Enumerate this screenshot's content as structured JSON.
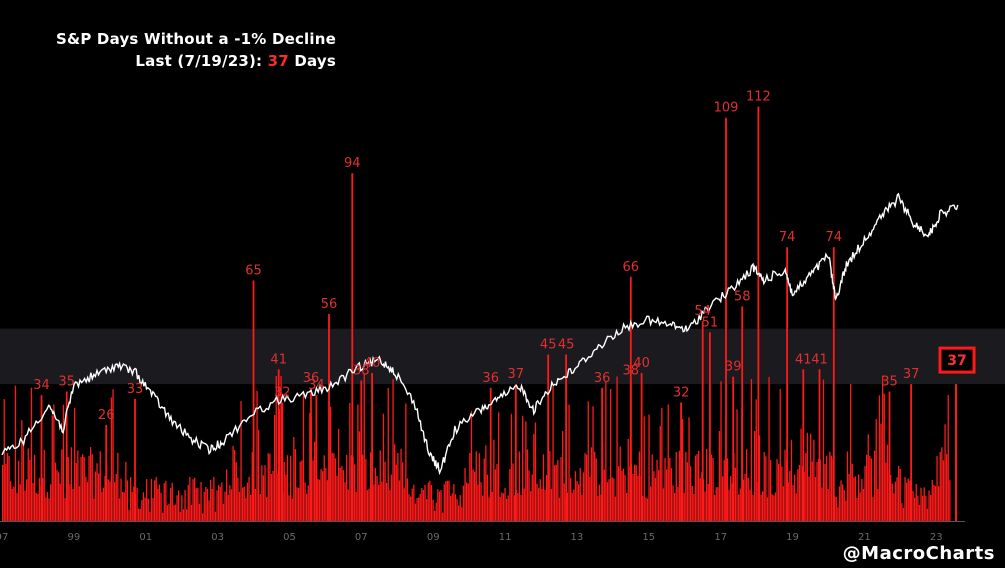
{
  "title": "S&P Days Without a -1% Decline",
  "subtitle_prefix": "Last (7/19/23): ",
  "subtitle_value": "37",
  "subtitle_suffix": " Days",
  "watermark": "@MacroCharts",
  "chart_data": {
    "type": "bar",
    "x_ticks": [
      "97",
      "99",
      "01",
      "03",
      "05",
      "07",
      "09",
      "11",
      "13",
      "15",
      "17",
      "19",
      "21",
      "23"
    ],
    "xlim": [
      1997,
      2023.8
    ],
    "ylim_bars": [
      0,
      130
    ],
    "bar_color": "#ff1a1a",
    "line_color": "#ffffff",
    "band_range": [
      37,
      52
    ],
    "highlight": {
      "date": 2023.55,
      "value": 37
    },
    "peak_labels": [
      {
        "x": 1998.1,
        "value": 34,
        "text": "34"
      },
      {
        "x": 1998.8,
        "value": 35,
        "text": "35"
      },
      {
        "x": 1999.9,
        "value": 26,
        "text": "26"
      },
      {
        "x": 2000.7,
        "value": 33,
        "text": "33"
      },
      {
        "x": 2004.0,
        "value": 65,
        "text": "65"
      },
      {
        "x": 2004.8,
        "value": 32,
        "text": "32"
      },
      {
        "x": 2004.7,
        "value": 41,
        "text": "41"
      },
      {
        "x": 2005.6,
        "value": 36,
        "text": "36"
      },
      {
        "x": 2005.75,
        "value": 34,
        "text": "34"
      },
      {
        "x": 2006.1,
        "value": 56,
        "text": "56"
      },
      {
        "x": 2006.75,
        "value": 94,
        "text": "94"
      },
      {
        "x": 2007.0,
        "value": 38,
        "text": "38"
      },
      {
        "x": 2007.3,
        "value": 40,
        "text": "40"
      },
      {
        "x": 2010.6,
        "value": 36,
        "text": "36"
      },
      {
        "x": 2011.3,
        "value": 37,
        "text": "37"
      },
      {
        "x": 2012.2,
        "value": 45,
        "text": "45"
      },
      {
        "x": 2012.7,
        "value": 45,
        "text": "45"
      },
      {
        "x": 2013.7,
        "value": 36,
        "text": "36"
      },
      {
        "x": 2014.5,
        "value": 66,
        "text": "66"
      },
      {
        "x": 2014.5,
        "value": 38,
        "text": "38"
      },
      {
        "x": 2014.8,
        "value": 40,
        "text": "40"
      },
      {
        "x": 2015.9,
        "value": 32,
        "text": "32"
      },
      {
        "x": 2016.5,
        "value": 54,
        "text": "54"
      },
      {
        "x": 2016.7,
        "value": 51,
        "text": "51"
      },
      {
        "x": 2017.15,
        "value": 109,
        "text": "109"
      },
      {
        "x": 2017.35,
        "value": 39,
        "text": "39"
      },
      {
        "x": 2017.6,
        "value": 58,
        "text": "58"
      },
      {
        "x": 2018.05,
        "value": 112,
        "text": "112"
      },
      {
        "x": 2018.85,
        "value": 74,
        "text": "74"
      },
      {
        "x": 2019.3,
        "value": 41,
        "text": "41"
      },
      {
        "x": 2019.75,
        "value": 41,
        "text": "41"
      },
      {
        "x": 2020.15,
        "value": 74,
        "text": "74"
      },
      {
        "x": 2021.7,
        "value": 35,
        "text": "35"
      },
      {
        "x": 2022.3,
        "value": 37,
        "text": "37"
      }
    ]
  }
}
